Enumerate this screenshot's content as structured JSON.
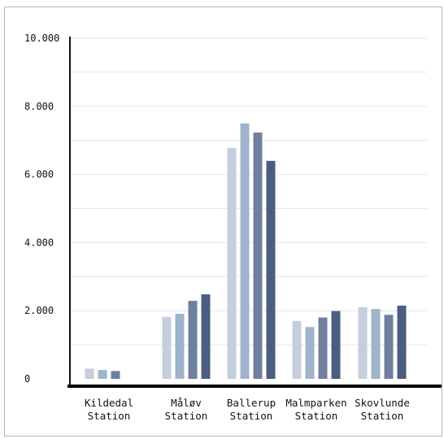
{
  "chart_data": {
    "type": "bar",
    "title": "",
    "xlabel": "",
    "ylabel": "",
    "categories": [
      [
        "Kildedal",
        "Station"
      ],
      [
        "Måløv",
        "Station"
      ],
      [
        "Ballerup",
        "Station"
      ],
      [
        "Malmparken",
        "Station"
      ],
      [
        "Skovlunde",
        "Station"
      ]
    ],
    "series": [
      {
        "values": [
          300,
          1820,
          6780,
          1700,
          2100
        ]
      },
      {
        "values": [
          260,
          1910,
          7500,
          1520,
          2050
        ]
      },
      {
        "values": [
          230,
          2290,
          7230,
          1800,
          1880
        ]
      },
      {
        "values": [
          null,
          2480,
          6400,
          1990,
          2150
        ]
      }
    ],
    "series_colors": [
      "#c4cedd",
      "#9fb3cb",
      "#6e809d",
      "#4b5e80"
    ],
    "ylim": [
      0,
      10000
    ],
    "yticks": [
      "0",
      "2.000",
      "4.000",
      "6.000",
      "8.000",
      "10.000"
    ],
    "ytick_values": [
      0,
      2000,
      4000,
      6000,
      8000,
      10000
    ],
    "grid": true
  }
}
